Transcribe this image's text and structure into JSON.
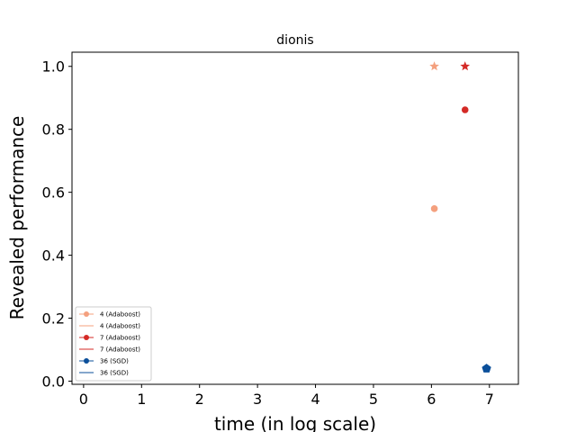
{
  "chart_data": {
    "type": "scatter",
    "title": "dionis",
    "xlabel": "time (in log scale)",
    "ylabel": "Revealed performance",
    "xlim": [
      -0.2,
      7.5
    ],
    "ylim": [
      -0.01,
      1.045
    ],
    "xticks": [
      0,
      1,
      2,
      3,
      4,
      5,
      6,
      7
    ],
    "yticks": [
      0.0,
      0.2,
      0.4,
      0.6,
      0.8,
      1.0
    ],
    "ytick_labels": [
      "0.0",
      "0.2",
      "0.4",
      "0.6",
      "0.8",
      "1.0"
    ],
    "grid": false,
    "legend_placement": "lower-left",
    "series": [
      {
        "name": "4 (Adaboost)",
        "color": "#f4a07e",
        "marker": "circle",
        "points": [
          [
            6.05,
            0.548
          ]
        ]
      },
      {
        "name": "4 (Adaboost)",
        "color": "#f4a07e",
        "marker": "star",
        "points": [
          [
            6.05,
            1.0
          ]
        ]
      },
      {
        "name": "7 (Adaboost)",
        "color": "#d42a26",
        "marker": "circle",
        "points": [
          [
            6.58,
            0.862
          ]
        ]
      },
      {
        "name": "7 (Adaboost)",
        "color": "#d42a26",
        "marker": "star",
        "points": [
          [
            6.58,
            1.0
          ]
        ]
      },
      {
        "name": "36 (SGD)",
        "color": "#0b4f9a",
        "marker": "circle",
        "points": [
          [
            6.95,
            0.04
          ]
        ]
      },
      {
        "name": "36 (SGD)",
        "color": "#0b4f9a",
        "marker": "pentagon",
        "points": [
          [
            6.95,
            0.04
          ]
        ]
      }
    ],
    "legend": [
      {
        "label": "4 (Adaboost)",
        "color": "#f4a07e",
        "style": "line-marker"
      },
      {
        "label": "4 (Adaboost)",
        "color": "#f4a07e",
        "style": "line"
      },
      {
        "label": "7 (Adaboost)",
        "color": "#d42a26",
        "style": "line-marker"
      },
      {
        "label": "7 (Adaboost)",
        "color": "#d42a26",
        "style": "line"
      },
      {
        "label": "36 (SGD)",
        "color": "#0b4f9a",
        "style": "line-marker"
      },
      {
        "label": "36 (SGD)",
        "color": "#0b4f9a",
        "style": "line"
      }
    ]
  }
}
